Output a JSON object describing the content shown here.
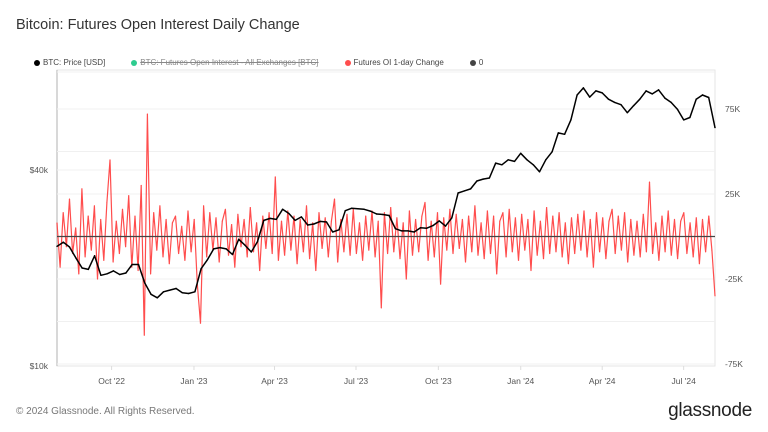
{
  "title": "Bitcoin: Futures Open Interest Daily Change",
  "legend": [
    {
      "label": "BTC: Price [USD]",
      "color": "#000000",
      "active": true
    },
    {
      "label": "BTC: Futures Open Interest - All Exchanges [BTC]",
      "color": "#2ecc8f",
      "active": false
    },
    {
      "label": "Futures OI 1-day Change",
      "color": "#ff4d4d",
      "active": true
    },
    {
      "label": "0",
      "color": "#444444",
      "active": true
    }
  ],
  "footer": {
    "copyright": "© 2024 Glassnode. All Rights Reserved.",
    "logo": "glassnode"
  },
  "chart_data": {
    "type": "line",
    "x_range": [
      "2022-08-01",
      "2024-08-05"
    ],
    "x_ticks": [
      {
        "label": "Oct '22",
        "date": "2022-10-01"
      },
      {
        "label": "Jan '23",
        "date": "2023-01-01"
      },
      {
        "label": "Apr '23",
        "date": "2023-04-01"
      },
      {
        "label": "Jul '23",
        "date": "2023-07-01"
      },
      {
        "label": "Oct '23",
        "date": "2023-10-01"
      },
      {
        "label": "Jan '24",
        "date": "2024-01-01"
      },
      {
        "label": "Apr '24",
        "date": "2024-04-01"
      },
      {
        "label": "Jul '24",
        "date": "2024-07-01"
      }
    ],
    "y_left": {
      "scale": "log",
      "range": [
        10000,
        80000
      ],
      "ticks": [
        {
          "value": 40000,
          "label": "$40k"
        },
        {
          "value": 10000,
          "label": "$10k"
        }
      ]
    },
    "y_right": {
      "scale": "linear",
      "range": [
        -75000,
        75000
      ],
      "ticks": [
        {
          "value": 75000,
          "label": "75K"
        },
        {
          "value": 25000,
          "label": "25K"
        },
        {
          "value": -25000,
          "label": "-25K"
        },
        {
          "value": -75000,
          "label": "-75K"
        }
      ]
    },
    "grid": true,
    "legend_position": "top-left",
    "series": [
      {
        "name": "BTC: Price [USD]",
        "axis": "left",
        "color": "#000000",
        "unit": "USD (thousands)",
        "dates": [
          "2022-08-01",
          "2022-08-08",
          "2022-08-15",
          "2022-08-22",
          "2022-08-29",
          "2022-09-05",
          "2022-09-12",
          "2022-09-19",
          "2022-09-26",
          "2022-10-03",
          "2022-10-10",
          "2022-10-17",
          "2022-10-24",
          "2022-10-31",
          "2022-11-07",
          "2022-11-14",
          "2022-11-21",
          "2022-11-28",
          "2022-12-05",
          "2022-12-12",
          "2022-12-19",
          "2022-12-26",
          "2023-01-02",
          "2023-01-09",
          "2023-01-16",
          "2023-01-23",
          "2023-01-30",
          "2023-02-06",
          "2023-02-13",
          "2023-02-20",
          "2023-02-27",
          "2023-03-06",
          "2023-03-13",
          "2023-03-20",
          "2023-03-27",
          "2023-04-03",
          "2023-04-10",
          "2023-04-17",
          "2023-04-24",
          "2023-05-01",
          "2023-05-08",
          "2023-05-15",
          "2023-05-22",
          "2023-05-29",
          "2023-06-05",
          "2023-06-12",
          "2023-06-19",
          "2023-06-26",
          "2023-07-03",
          "2023-07-10",
          "2023-07-17",
          "2023-07-24",
          "2023-07-31",
          "2023-08-07",
          "2023-08-14",
          "2023-08-21",
          "2023-08-28",
          "2023-09-04",
          "2023-09-11",
          "2023-09-18",
          "2023-09-25",
          "2023-10-02",
          "2023-10-09",
          "2023-10-16",
          "2023-10-23",
          "2023-10-30",
          "2023-11-06",
          "2023-11-13",
          "2023-11-20",
          "2023-11-27",
          "2023-12-04",
          "2023-12-11",
          "2023-12-18",
          "2023-12-25",
          "2024-01-01",
          "2024-01-08",
          "2024-01-15",
          "2024-01-22",
          "2024-01-29",
          "2024-02-05",
          "2024-02-12",
          "2024-02-19",
          "2024-02-26",
          "2024-03-04",
          "2024-03-11",
          "2024-03-18",
          "2024-03-25",
          "2024-04-01",
          "2024-04-08",
          "2024-04-15",
          "2024-04-22",
          "2024-04-29",
          "2024-05-06",
          "2024-05-13",
          "2024-05-20",
          "2024-05-27",
          "2024-06-03",
          "2024-06-10",
          "2024-06-17",
          "2024-06-24",
          "2024-07-01",
          "2024-07-08",
          "2024-07-15",
          "2024-07-22",
          "2024-07-29",
          "2024-08-05"
        ],
        "values": [
          23.3,
          24.0,
          23.2,
          21.5,
          20.0,
          19.8,
          21.8,
          19.0,
          19.2,
          19.6,
          19.1,
          19.3,
          20.5,
          20.5,
          18.0,
          16.6,
          16.2,
          16.9,
          17.1,
          17.3,
          16.8,
          16.7,
          16.9,
          19.9,
          21.2,
          22.9,
          23.1,
          22.9,
          22.0,
          24.5,
          23.5,
          22.4,
          24.1,
          28.0,
          28.4,
          28.2,
          30.3,
          29.4,
          28.0,
          28.7,
          27.1,
          27.3,
          27.8,
          27.7,
          25.8,
          26.2,
          30.0,
          30.5,
          30.4,
          30.3,
          29.9,
          29.3,
          29.2,
          29.0,
          26.4,
          26.0,
          26.0,
          25.8,
          26.6,
          26.5,
          27.0,
          27.9,
          26.9,
          28.5,
          34.0,
          34.5,
          35.0,
          37.0,
          37.5,
          37.8,
          42.0,
          41.5,
          43.0,
          42.5,
          45.0,
          43.0,
          41.5,
          39.5,
          43.0,
          45.5,
          52.0,
          51.5,
          57.0,
          68.0,
          71.5,
          67.0,
          70.0,
          69.0,
          66.0,
          64.5,
          63.5,
          60.0,
          63.0,
          66.0,
          70.0,
          68.5,
          70.5,
          66.5,
          64.5,
          61.5,
          57.0,
          58.0,
          66.0,
          68.0,
          66.8,
          54.0
        ]
      },
      {
        "name": "Futures OI 1-day Change",
        "axis": "right",
        "color": "#ff4d4d",
        "unit": "BTC (thousands)",
        "values": [
          8,
          -18,
          14,
          -6,
          22,
          -10,
          5,
          -22,
          28,
          -12,
          12,
          -8,
          18,
          -25,
          10,
          -14,
          20,
          45,
          -15,
          9,
          -10,
          16,
          -6,
          24,
          -18,
          12,
          -20,
          30,
          -58,
          72,
          -22,
          14,
          -8,
          18,
          -12,
          10,
          -16,
          8,
          12,
          -10,
          6,
          -14,
          15,
          -9,
          10,
          -28,
          -51,
          18,
          -12,
          14,
          -8,
          11,
          -15,
          9,
          16,
          -11,
          7,
          -18,
          13,
          -6,
          10,
          -12,
          17,
          -9,
          8,
          -20,
          12,
          -7,
          14,
          -10,
          35,
          -14,
          9,
          -11,
          15,
          -8,
          12,
          -16,
          10,
          -9,
          18,
          -13,
          8,
          -20,
          14,
          -7,
          11,
          -12,
          9,
          22,
          -15,
          10,
          -9,
          13,
          -11,
          16,
          -10,
          8,
          -14,
          12,
          -8,
          15,
          -12,
          9,
          -42,
          14,
          -10,
          17,
          -9,
          11,
          -13,
          8,
          -25,
          15,
          -11,
          10,
          -9,
          12,
          20,
          -14,
          9,
          -12,
          14,
          -28,
          11,
          -8,
          16,
          -10,
          13,
          -7,
          10,
          -15,
          12,
          -9,
          18,
          -11,
          8,
          -13,
          15,
          -10,
          12,
          -22,
          9,
          14,
          -12,
          16,
          -9,
          11,
          -14,
          13,
          -8,
          10,
          -20,
          15,
          -11,
          9,
          -13,
          17,
          -10,
          12,
          -9,
          14,
          -12,
          8,
          -16,
          11,
          -10,
          13,
          -8,
          15,
          -12,
          10,
          -18,
          14,
          -9,
          11,
          -13,
          9,
          16,
          -10,
          12,
          -8,
          14,
          -15,
          10,
          -11,
          9,
          -12,
          13,
          -9,
          32,
          -10,
          8,
          -14,
          12,
          -9,
          15,
          -11,
          10,
          -13,
          9,
          14,
          -10,
          8,
          -12,
          11,
          -16,
          10,
          -9,
          12,
          -8,
          -35
        ]
      },
      {
        "name": "0",
        "axis": "right",
        "color": "#444444",
        "constant": 0
      }
    ]
  }
}
